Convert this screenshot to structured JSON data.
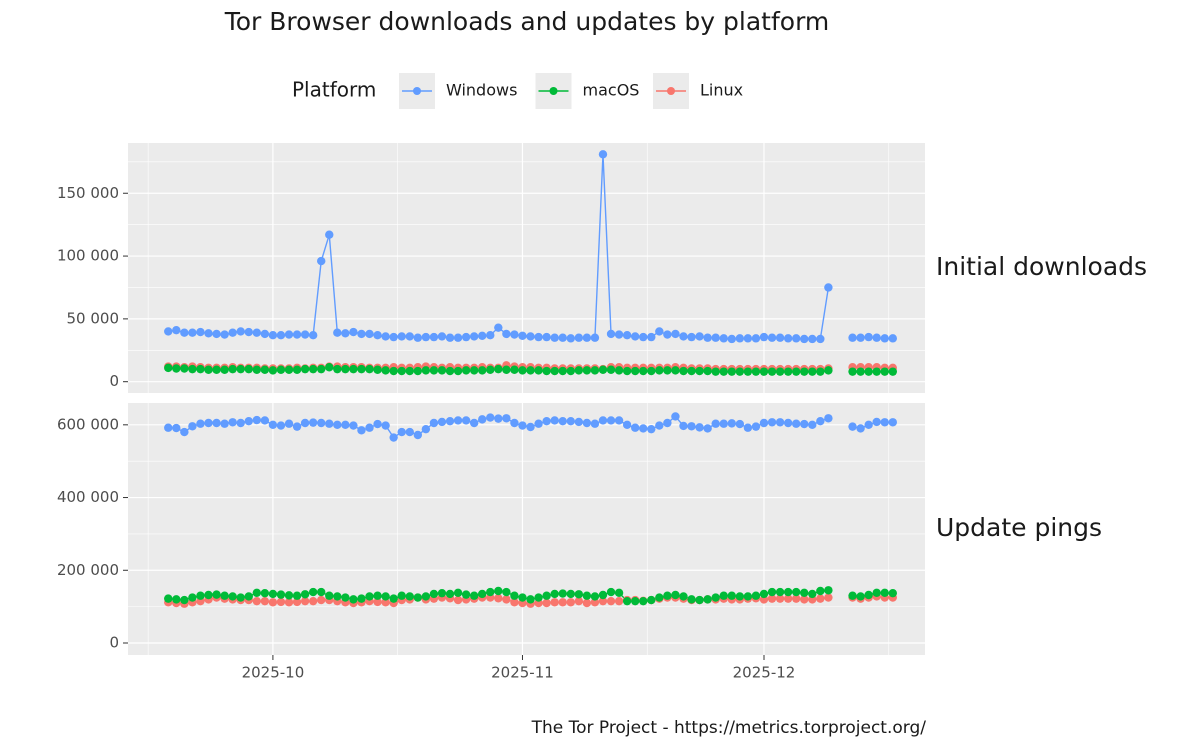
{
  "chart_data": {
    "type": "line",
    "title": "Tor Browser downloads and updates by platform",
    "legend_title": "Platform",
    "caption": "The Tor Project - https://metrics.torproject.org/",
    "grid": true,
    "xlim": [
      "2025-09-13",
      "2025-12-21"
    ],
    "xticks": [
      {
        "value": "2025-10-01",
        "label": "2025-10"
      },
      {
        "value": "2025-11-01",
        "label": "2025-11"
      },
      {
        "value": "2025-12-01",
        "label": "2025-12"
      }
    ],
    "x": [
      "2025-09-18",
      "2025-09-19",
      "2025-09-20",
      "2025-09-21",
      "2025-09-22",
      "2025-09-23",
      "2025-09-24",
      "2025-09-25",
      "2025-09-26",
      "2025-09-27",
      "2025-09-28",
      "2025-09-29",
      "2025-09-30",
      "2025-10-01",
      "2025-10-02",
      "2025-10-03",
      "2025-10-04",
      "2025-10-05",
      "2025-10-06",
      "2025-10-07",
      "2025-10-08",
      "2025-10-09",
      "2025-10-10",
      "2025-10-11",
      "2025-10-12",
      "2025-10-13",
      "2025-10-14",
      "2025-10-15",
      "2025-10-16",
      "2025-10-17",
      "2025-10-18",
      "2025-10-19",
      "2025-10-20",
      "2025-10-21",
      "2025-10-22",
      "2025-10-23",
      "2025-10-24",
      "2025-10-25",
      "2025-10-26",
      "2025-10-27",
      "2025-10-28",
      "2025-10-29",
      "2025-10-30",
      "2025-10-31",
      "2025-11-01",
      "2025-11-02",
      "2025-11-03",
      "2025-11-04",
      "2025-11-05",
      "2025-11-06",
      "2025-11-07",
      "2025-11-08",
      "2025-11-09",
      "2025-11-10",
      "2025-11-11",
      "2025-11-12",
      "2025-11-13",
      "2025-11-14",
      "2025-11-15",
      "2025-11-16",
      "2025-11-17",
      "2025-11-18",
      "2025-11-19",
      "2025-11-20",
      "2025-11-21",
      "2025-11-22",
      "2025-11-23",
      "2025-11-24",
      "2025-11-25",
      "2025-11-26",
      "2025-11-27",
      "2025-11-28",
      "2025-11-29",
      "2025-11-30",
      "2025-12-01",
      "2025-12-02",
      "2025-12-03",
      "2025-12-04",
      "2025-12-05",
      "2025-12-06",
      "2025-12-07",
      "2025-12-08",
      "2025-12-09",
      "2025-12-10",
      "2025-12-11",
      "2025-12-12",
      "2025-12-13",
      "2025-12-14",
      "2025-12-15",
      "2025-12-16",
      "2025-12-17"
    ],
    "panels": [
      {
        "label": "Initial downloads",
        "ylim": [
          -9000,
          190000
        ],
        "yticks": [
          {
            "value": 0,
            "label": "0"
          },
          {
            "value": 50000,
            "label": "50 000"
          },
          {
            "value": 100000,
            "label": "100 000"
          },
          {
            "value": 150000,
            "label": "150 000"
          }
        ],
        "series": [
          {
            "name": "Windows",
            "color": "#619CFF",
            "values": [
              40000,
              41000,
              39000,
              39000,
              39500,
              38500,
              38000,
              37500,
              39000,
              40000,
              39500,
              39000,
              38000,
              37000,
              37000,
              37500,
              37500,
              37500,
              37000,
              96000,
              117000,
              39000,
              38500,
              39500,
              38000,
              38000,
              37000,
              36000,
              35500,
              36000,
              36000,
              35000,
              35500,
              35500,
              36000,
              35000,
              35000,
              35500,
              36000,
              36500,
              37000,
              43000,
              38000,
              37500,
              36500,
              36000,
              35500,
              35500,
              35000,
              35000,
              34500,
              35000,
              35000,
              35000,
              181000,
              38000,
              37500,
              37000,
              36000,
              35500,
              35500,
              40000,
              37500,
              38000,
              36000,
              35500,
              36000,
              35000,
              35000,
              34500,
              34000,
              34500,
              34500,
              34500,
              35500,
              35000,
              35000,
              34500,
              34500,
              34000,
              34000,
              34000,
              75000,
              null,
              null,
              35000,
              35000,
              35500,
              35000,
              34500,
              34500
            ]
          },
          {
            "name": "macOS",
            "color": "#00BA38",
            "values": [
              11000,
              10500,
              10500,
              10000,
              10000,
              9500,
              9500,
              9500,
              10000,
              10000,
              10000,
              9500,
              9500,
              9000,
              9500,
              9500,
              9500,
              10000,
              10000,
              10000,
              11500,
              10000,
              10000,
              10000,
              10000,
              10000,
              9500,
              9000,
              8500,
              8500,
              8500,
              8500,
              9000,
              9000,
              9000,
              8500,
              8500,
              9000,
              9000,
              9000,
              9500,
              10000,
              9500,
              9500,
              9000,
              9000,
              9000,
              8500,
              8500,
              8500,
              8500,
              9000,
              9000,
              9000,
              9500,
              9500,
              9000,
              8500,
              8500,
              8500,
              8500,
              9000,
              9000,
              9000,
              8500,
              8500,
              8500,
              8500,
              8000,
              8000,
              8000,
              8000,
              8000,
              8000,
              8000,
              8000,
              8000,
              8000,
              8000,
              8000,
              8000,
              8000,
              9000,
              null,
              null,
              8000,
              8000,
              8000,
              8000,
              8000,
              8000
            ]
          },
          {
            "name": "Linux",
            "color": "#F8766D",
            "values": [
              12000,
              12000,
              11500,
              12000,
              11500,
              11000,
              11000,
              11000,
              11500,
              11000,
              11000,
              11000,
              10500,
              10500,
              10500,
              10500,
              11000,
              10500,
              11000,
              11000,
              12000,
              12000,
              11500,
              11500,
              11500,
              11000,
              11000,
              11000,
              11500,
              11000,
              11000,
              11500,
              12000,
              11500,
              11000,
              11500,
              11000,
              11000,
              11000,
              11500,
              11000,
              11000,
              13000,
              12000,
              11500,
              11500,
              11000,
              11000,
              10500,
              10500,
              10500,
              10500,
              10500,
              10500,
              10000,
              11500,
              11500,
              11000,
              11000,
              11000,
              11000,
              11000,
              11000,
              11500,
              11000,
              10500,
              10500,
              10500,
              10000,
              10000,
              10000,
              10000,
              10000,
              10000,
              10000,
              10000,
              10000,
              10000,
              10000,
              10000,
              10000,
              10000,
              10500,
              null,
              null,
              11500,
              11500,
              11500,
              11500,
              11000,
              11000
            ]
          }
        ]
      },
      {
        "label": "Update pings",
        "ylim": [
          -33000,
          660000
        ],
        "yticks": [
          {
            "value": 0,
            "label": "0"
          },
          {
            "value": 200000,
            "label": "200 000"
          },
          {
            "value": 400000,
            "label": "400 000"
          },
          {
            "value": 600000,
            "label": "600 000"
          }
        ],
        "series": [
          {
            "name": "Windows",
            "color": "#619CFF",
            "values": [
              592000,
              591000,
              580000,
              596000,
              603000,
              605000,
              605000,
              603000,
              607000,
              605000,
              610000,
              613000,
              612000,
              600000,
              598000,
              603000,
              595000,
              605000,
              606000,
              605000,
              603000,
              600000,
              600000,
              598000,
              585000,
              592000,
              602000,
              598000,
              565000,
              580000,
              580000,
              572000,
              588000,
              605000,
              608000,
              610000,
              612000,
              612000,
              605000,
              615000,
              620000,
              617000,
              618000,
              605000,
              598000,
              594000,
              603000,
              610000,
              612000,
              610000,
              610000,
              608000,
              605000,
              603000,
              612000,
              612000,
              612000,
              600000,
              592000,
              590000,
              588000,
              598000,
              605000,
              623000,
              597000,
              596000,
              593000,
              590000,
              603000,
              603000,
              604000,
              602000,
              592000,
              595000,
              605000,
              607000,
              607000,
              605000,
              603000,
              602000,
              600000,
              610000,
              618000,
              null,
              null,
              595000,
              590000,
              600000,
              608000,
              607000,
              607000
            ]
          },
          {
            "name": "macOS",
            "color": "#00BA38",
            "values": [
              122000,
              120000,
              118000,
              125000,
              130000,
              132000,
              133000,
              130000,
              128000,
              125000,
              128000,
              138000,
              137000,
              135000,
              133000,
              131000,
              130000,
              134000,
              140000,
              140000,
              130000,
              128000,
              125000,
              120000,
              122000,
              128000,
              130000,
              128000,
              122000,
              130000,
              128000,
              125000,
              128000,
              135000,
              137000,
              135000,
              138000,
              133000,
              130000,
              135000,
              140000,
              143000,
              140000,
              130000,
              125000,
              120000,
              125000,
              130000,
              135000,
              136000,
              135000,
              134000,
              130000,
              128000,
              132000,
              140000,
              138000,
              115000,
              115000,
              115000,
              118000,
              125000,
              130000,
              132000,
              128000,
              120000,
              118000,
              120000,
              125000,
              130000,
              130000,
              128000,
              128000,
              130000,
              135000,
              140000,
              140000,
              140000,
              140000,
              138000,
              135000,
              143000,
              145000,
              null,
              null,
              130000,
              128000,
              132000,
              138000,
              138000,
              137000
            ]
          },
          {
            "name": "Linux",
            "color": "#F8766D",
            "values": [
              112000,
              110000,
              108000,
              112000,
              115000,
              120000,
              125000,
              122000,
              120000,
              118000,
              118000,
              115000,
              115000,
              112000,
              113000,
              112000,
              113000,
              115000,
              115000,
              118000,
              118000,
              115000,
              112000,
              110000,
              112000,
              115000,
              113000,
              112000,
              110000,
              118000,
              120000,
              125000,
              120000,
              122000,
              125000,
              123000,
              118000,
              120000,
              122000,
              125000,
              125000,
              123000,
              120000,
              112000,
              110000,
              108000,
              110000,
              110000,
              112000,
              112000,
              112000,
              115000,
              110000,
              112000,
              115000,
              115000,
              115000,
              118000,
              118000,
              116000,
              118000,
              122000,
              125000,
              125000,
              122000,
              118000,
              118000,
              120000,
              120000,
              122000,
              120000,
              120000,
              122000,
              123000,
              120000,
              122000,
              122000,
              122000,
              122000,
              120000,
              120000,
              122000,
              125000,
              null,
              null,
              125000,
              122000,
              125000,
              128000,
              125000,
              125000
            ]
          }
        ]
      }
    ]
  }
}
